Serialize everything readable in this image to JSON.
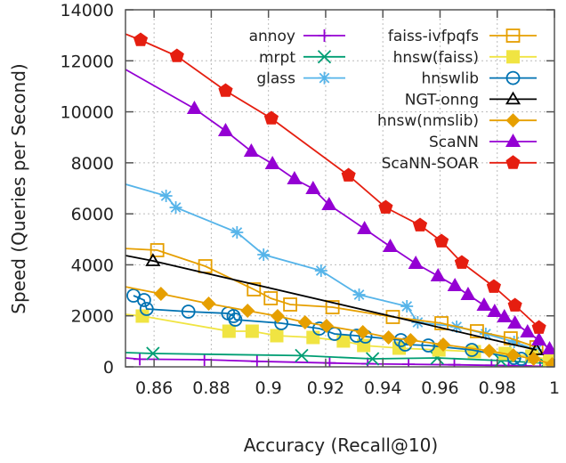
{
  "chart_data": {
    "type": "line",
    "title": "",
    "xlabel": "Accuracy (Recall@10)",
    "ylabel": "Speed (Queries per Second)",
    "xlim": [
      0.85,
      1.0
    ],
    "ylim": [
      0,
      14000
    ],
    "xticks": [
      0.86,
      0.88,
      0.9,
      0.92,
      0.94,
      0.96,
      0.98,
      1.0
    ],
    "xtick_labels": [
      "0.86",
      "0.88",
      "0.9",
      "0.92",
      "0.94",
      "0.96",
      "0.98",
      "1"
    ],
    "yticks": [
      0,
      2000,
      4000,
      6000,
      8000,
      10000,
      12000,
      14000
    ],
    "ytick_labels": [
      "0",
      "2000",
      "4000",
      "6000",
      "8000",
      "10000",
      "12000",
      "14000"
    ],
    "grid": true,
    "legend_position": "top-right",
    "series": [
      {
        "name": "annoy",
        "color": "#9400d3",
        "marker": "plus",
        "x": [
          0.85,
          0.855,
          0.8776,
          0.896,
          0.9214,
          0.9347,
          0.949,
          0.965,
          0.978,
          0.984,
          0.99,
          0.995
        ],
        "y": [
          350,
          300,
          280,
          215,
          150,
          120,
          100,
          80,
          60,
          50,
          35,
          20
        ]
      },
      {
        "name": "mrpt",
        "color": "#009e73",
        "marker": "cross",
        "x": [
          0.85,
          0.8596,
          0.9116,
          0.9364,
          0.959,
          0.9813,
          0.9967
        ],
        "y": [
          560,
          524,
          440,
          314,
          349,
          244,
          140
        ]
      },
      {
        "name": "glass",
        "color": "#56b4e9",
        "marker": "asterisk",
        "x": [
          0.85,
          0.8642,
          0.8676,
          0.889,
          0.8983,
          0.9184,
          0.9317,
          0.9484,
          0.9522,
          0.9658,
          0.976,
          0.9859,
          0.9937
        ],
        "y": [
          7160,
          6704,
          6250,
          5272,
          4400,
          3771,
          2828,
          2374,
          1746,
          1571,
          1292,
          978,
          663
        ]
      },
      {
        "name": "faiss-ivfpqfs",
        "color": "#e69f00",
        "marker": "open-square",
        "x": [
          0.85,
          0.8611,
          0.8779,
          0.8949,
          0.9008,
          0.9076,
          0.9224,
          0.9435,
          0.9605,
          0.9729,
          0.9847,
          0.9937
        ],
        "y": [
          4640,
          4574,
          3946,
          3038,
          2689,
          2444,
          2339,
          1955,
          1711,
          1397,
          1117,
          768
        ]
      },
      {
        "name": "hnsw(faiss)",
        "color": "#f0e442",
        "marker": "filled-square",
        "x": [
          0.85,
          0.8559,
          0.8862,
          0.8943,
          0.9029,
          0.9156,
          0.9262,
          0.9333,
          0.9457,
          0.9596,
          0.972,
          0.9828,
          0.9921,
          0.9983
        ],
        "y": [
          2060,
          1990,
          1397,
          1397,
          1222,
          1152,
          1013,
          838,
          733,
          663,
          594,
          524,
          419,
          279
        ]
      },
      {
        "name": "hnswlib",
        "color": "#0072b2",
        "marker": "open-circle",
        "x": [
          0.8528,
          0.8565,
          0.8574,
          0.872,
          0.8859,
          0.8878,
          0.8884,
          0.9045,
          0.9178,
          0.9231,
          0.9308,
          0.9339,
          0.9463,
          0.9478,
          0.9559,
          0.9711,
          0.9859,
          0.9884
        ],
        "y": [
          2793,
          2619,
          2270,
          2165,
          2095,
          1990,
          1851,
          1711,
          1501,
          1292,
          1222,
          1187,
          1047,
          873,
          838,
          663,
          349,
          314
        ]
      },
      {
        "name": "NGT-onng",
        "color": "#000000",
        "marker": "open-triangle",
        "x": [
          0.85,
          0.8596,
          0.9937
        ],
        "y": [
          4365,
          4155,
          663
        ]
      },
      {
        "name": "hnsw(nmslib)",
        "color": "#e69f00",
        "marker": "filled-diamond",
        "x": [
          0.85,
          0.8624,
          0.8791,
          0.8927,
          0.9032,
          0.9128,
          0.9203,
          0.933,
          0.942,
          0.9497,
          0.9611,
          0.9772,
          0.9856,
          0.9927,
          0.9992
        ],
        "y": [
          3140,
          2863,
          2479,
          2200,
          1990,
          1746,
          1606,
          1362,
          1152,
          1047,
          873,
          628,
          454,
          314,
          105
        ]
      },
      {
        "name": "ScaNN",
        "color": "#9400d3",
        "marker": "filled-triangle",
        "x": [
          0.85,
          0.8741,
          0.885,
          0.894,
          0.9014,
          0.9091,
          0.9156,
          0.9212,
          0.9336,
          0.9426,
          0.9515,
          0.9593,
          0.9652,
          0.9698,
          0.9754,
          0.9791,
          0.9825,
          0.9862,
          0.9906,
          0.9946,
          0.9983
        ],
        "y": [
          11660,
          10126,
          9253,
          8450,
          7961,
          7367,
          6983,
          6355,
          5412,
          4714,
          4050,
          3561,
          3177,
          2828,
          2409,
          2165,
          1955,
          1711,
          1362,
          1047,
          698
        ]
      },
      {
        "name": "ScaNN-SOAR",
        "color": "#e51e10",
        "marker": "filled-pentagon",
        "x": [
          0.85,
          0.8553,
          0.868,
          0.885,
          0.901,
          0.928,
          0.941,
          0.953,
          0.9605,
          0.9676,
          0.9788,
          0.9862,
          0.9946
        ],
        "y": [
          13050,
          12814,
          12186,
          10824,
          9742,
          7507,
          6250,
          5552,
          4923,
          4085,
          3142,
          2409,
          1536
        ]
      }
    ]
  }
}
